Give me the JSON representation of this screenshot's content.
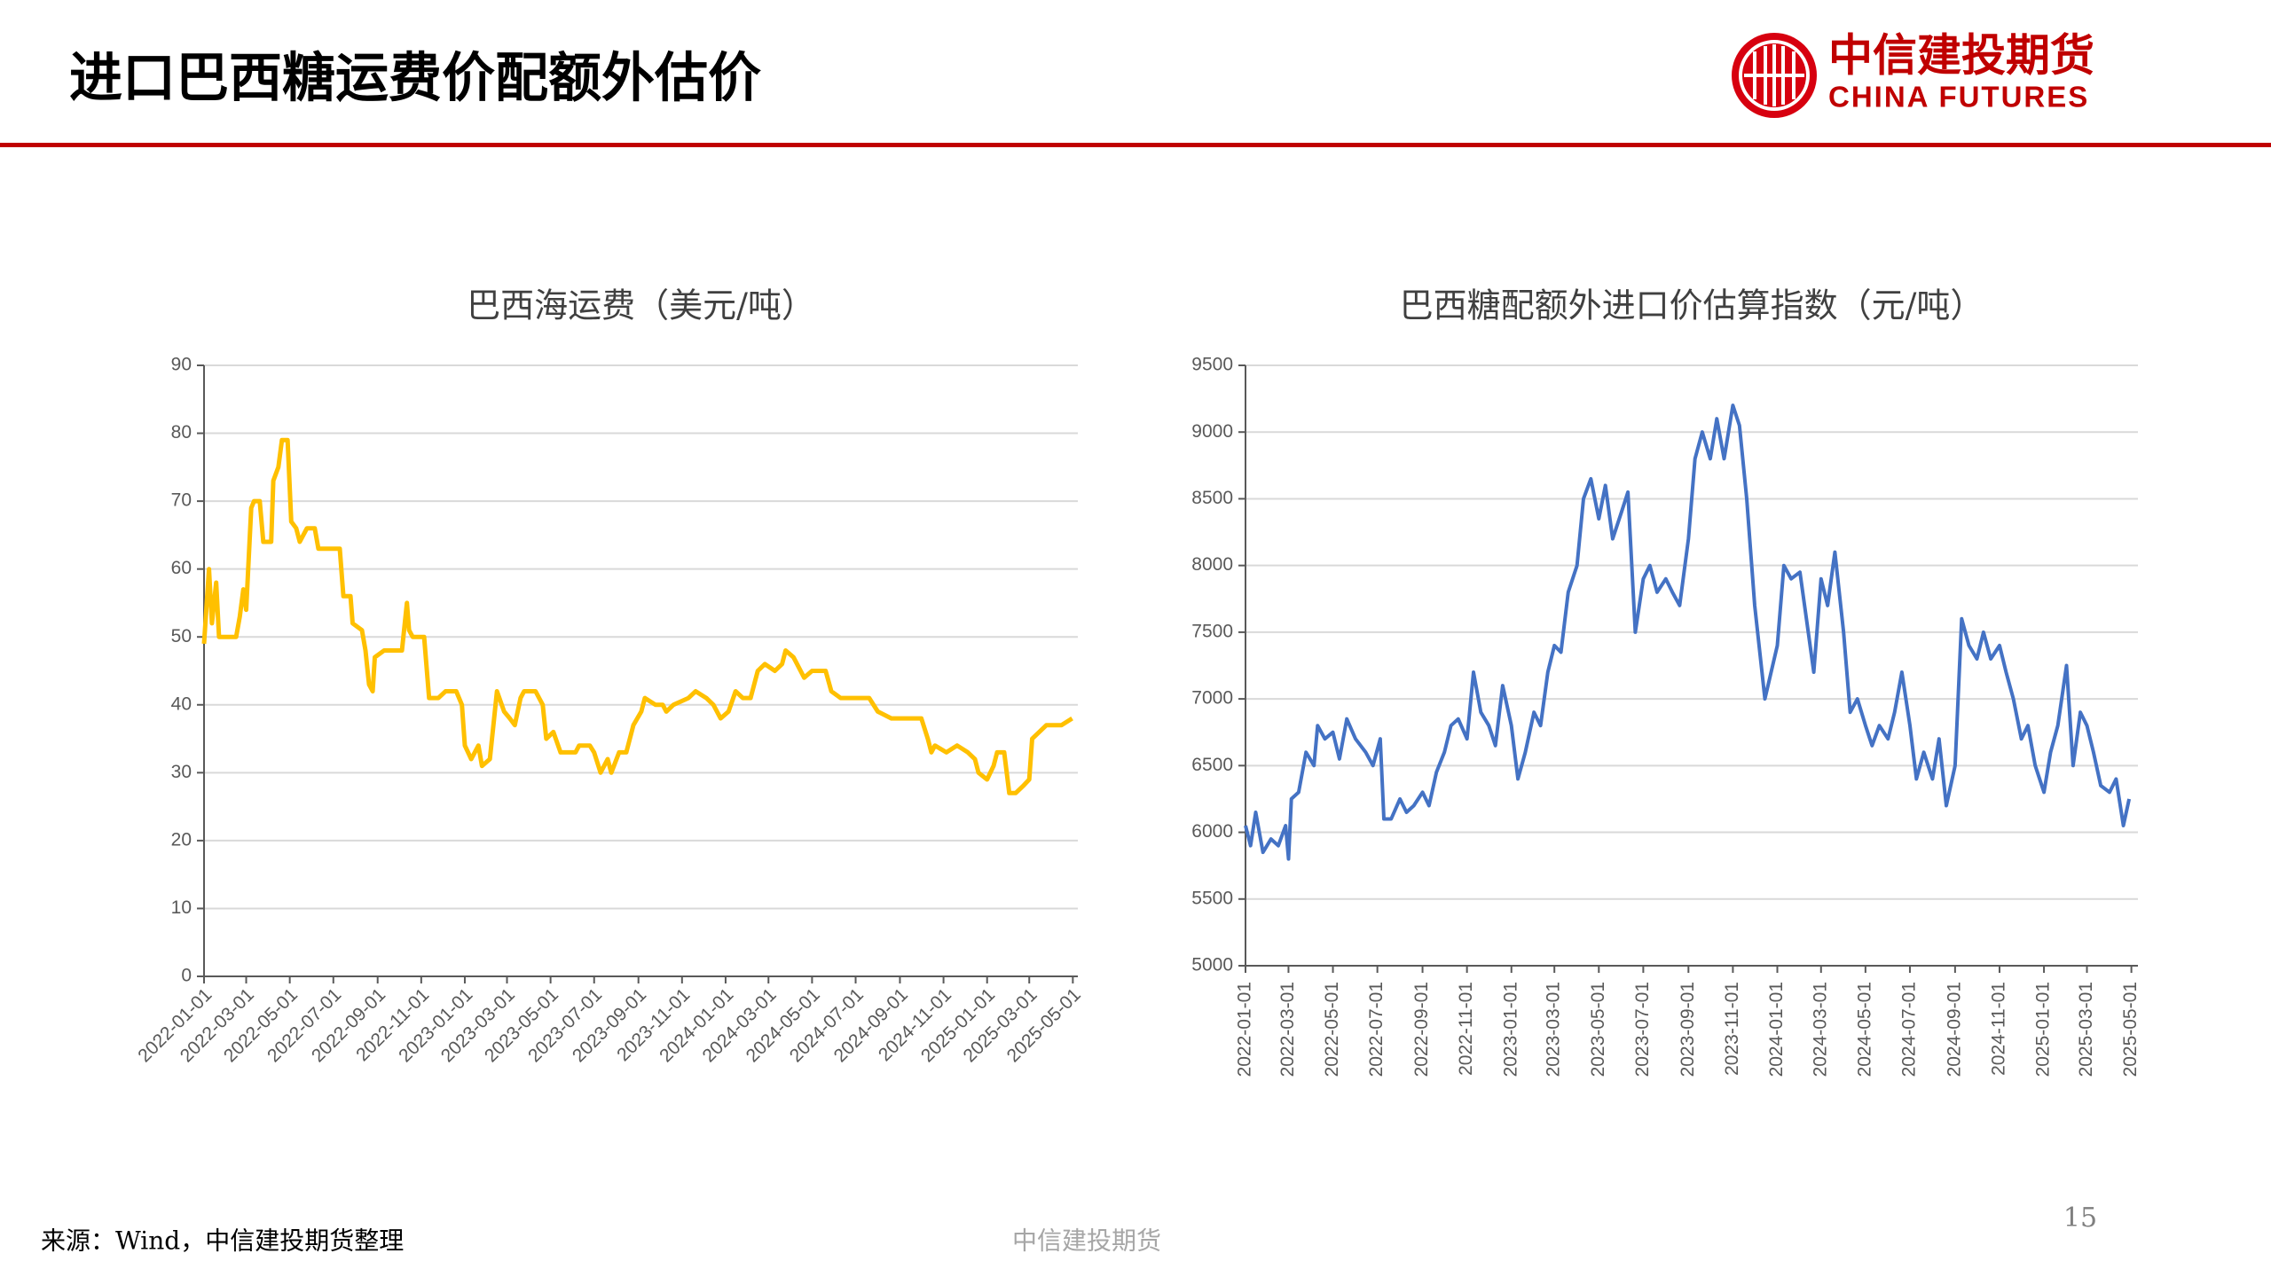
{
  "header": {
    "title": "进口巴西糖运费价配额外估价",
    "logo_cn": "中信建投期货",
    "logo_en": "CHINA FUTURES"
  },
  "footer": {
    "source": "来源：Wind，中信建投期货整理",
    "watermark": "中信建投期货",
    "page_number": "15"
  },
  "chart_data": [
    {
      "type": "line",
      "title": "巴西海运费（美元/吨）",
      "color": "#FFC000",
      "grid": true,
      "xlim": [
        "2022-01-01",
        "2025-05-08"
      ],
      "xticks": [
        "2022-01-01",
        "2022-03-01",
        "2022-05-01",
        "2022-07-01",
        "2022-09-01",
        "2022-11-01",
        "2023-01-01",
        "2023-03-01",
        "2023-05-01",
        "2023-07-01",
        "2023-09-01",
        "2023-11-01",
        "2024-01-01",
        "2024-03-01",
        "2024-05-01",
        "2024-07-01",
        "2024-09-01",
        "2024-11-01",
        "2025-01-01",
        "2025-03-01",
        "2025-05-01"
      ],
      "ylim": [
        0,
        90
      ],
      "yticks": [
        0,
        10,
        20,
        30,
        40,
        50,
        60,
        70,
        80,
        90
      ],
      "x": [
        "2022-01-01",
        "2022-01-08",
        "2022-01-12",
        "2022-01-18",
        "2022-01-22",
        "2022-02-15",
        "2022-02-20",
        "2022-02-25",
        "2022-03-01",
        "2022-03-08",
        "2022-03-12",
        "2022-03-20",
        "2022-03-25",
        "2022-04-05",
        "2022-04-08",
        "2022-04-15",
        "2022-04-20",
        "2022-04-28",
        "2022-05-03",
        "2022-05-10",
        "2022-05-15",
        "2022-05-25",
        "2022-06-05",
        "2022-06-10",
        "2022-07-10",
        "2022-07-15",
        "2022-07-25",
        "2022-07-28",
        "2022-08-10",
        "2022-08-15",
        "2022-08-20",
        "2022-08-25",
        "2022-08-28",
        "2022-09-10",
        "2022-10-05",
        "2022-10-12",
        "2022-10-15",
        "2022-10-20",
        "2022-11-05",
        "2022-11-12",
        "2022-11-25",
        "2022-12-05",
        "2022-12-20",
        "2022-12-28",
        "2023-01-01",
        "2023-01-10",
        "2023-01-15",
        "2023-01-20",
        "2023-01-25",
        "2023-02-05",
        "2023-02-15",
        "2023-02-25",
        "2023-03-05",
        "2023-03-12",
        "2023-03-20",
        "2023-03-25",
        "2023-04-10",
        "2023-04-20",
        "2023-04-25",
        "2023-05-05",
        "2023-05-15",
        "2023-06-05",
        "2023-06-10",
        "2023-06-25",
        "2023-07-01",
        "2023-07-10",
        "2023-07-20",
        "2023-07-25",
        "2023-08-05",
        "2023-08-15",
        "2023-08-25",
        "2023-09-05",
        "2023-09-10",
        "2023-09-25",
        "2023-10-05",
        "2023-10-10",
        "2023-10-20",
        "2023-11-10",
        "2023-11-20",
        "2023-12-05",
        "2023-12-15",
        "2023-12-25",
        "2024-01-05",
        "2024-01-15",
        "2024-01-25",
        "2024-02-05",
        "2024-02-15",
        "2024-02-25",
        "2024-03-10",
        "2024-03-20",
        "2024-03-25",
        "2024-04-05",
        "2024-04-10",
        "2024-04-20",
        "2024-05-01",
        "2024-05-20",
        "2024-05-28",
        "2024-06-10",
        "2024-06-25",
        "2024-07-10",
        "2024-07-20",
        "2024-08-01",
        "2024-08-20",
        "2024-09-05",
        "2024-09-15",
        "2024-10-01",
        "2024-10-10",
        "2024-10-15",
        "2024-10-20",
        "2024-11-05",
        "2024-11-20",
        "2024-12-05",
        "2024-12-15",
        "2024-12-20",
        "2025-01-01",
        "2025-01-10",
        "2025-01-15",
        "2025-01-25",
        "2025-02-01",
        "2025-02-10",
        "2025-02-20",
        "2025-03-01",
        "2025-03-05",
        "2025-03-15",
        "2025-03-25",
        "2025-04-15",
        "2025-04-30"
      ],
      "values": [
        49,
        60,
        52,
        58,
        50,
        50,
        53,
        57,
        54,
        69,
        70,
        70,
        64,
        64,
        73,
        75,
        79,
        79,
        67,
        66,
        64,
        66,
        66,
        63,
        63,
        56,
        56,
        52,
        51,
        48,
        43,
        42,
        47,
        48,
        48,
        55,
        51,
        50,
        50,
        41,
        41,
        42,
        42,
        40,
        34,
        32,
        33,
        34,
        31,
        32,
        42,
        39,
        38,
        37,
        41,
        42,
        42,
        40,
        35,
        36,
        33,
        33,
        34,
        34,
        33,
        30,
        32,
        30,
        33,
        33,
        37,
        39,
        41,
        40,
        40,
        39,
        40,
        41,
        42,
        41,
        40,
        38,
        39,
        42,
        41,
        41,
        45,
        46,
        45,
        46,
        48,
        47,
        46,
        44,
        45,
        45,
        42,
        41,
        41,
        41,
        41,
        39,
        38,
        38,
        38,
        38,
        35,
        33,
        34,
        33,
        34,
        33,
        32,
        30,
        29,
        31,
        33,
        33,
        27,
        27,
        28,
        29,
        35,
        36,
        37,
        37,
        38
      ]
    },
    {
      "type": "line",
      "title": "巴西糖配额外进口价估算指数（元/吨）",
      "color": "#4472C4",
      "grid": true,
      "xlim": [
        "2022-01-01",
        "2025-05-10"
      ],
      "xticks": [
        "2022-01-01",
        "2022-03-01",
        "2022-05-01",
        "2022-07-01",
        "2022-09-01",
        "2022-11-01",
        "2023-01-01",
        "2023-03-01",
        "2023-05-01",
        "2023-07-01",
        "2023-09-01",
        "2023-11-01",
        "2024-01-01",
        "2024-03-01",
        "2024-05-01",
        "2024-07-01",
        "2024-09-01",
        "2024-11-01",
        "2025-01-01",
        "2025-03-01",
        "2025-05-01"
      ],
      "ylim": [
        5000,
        9500
      ],
      "yticks": [
        5000,
        5500,
        6000,
        6500,
        7000,
        7500,
        8000,
        8500,
        9000,
        9500
      ],
      "x": [
        "2022-01-01",
        "2022-01-08",
        "2022-01-15",
        "2022-01-25",
        "2022-02-05",
        "2022-02-15",
        "2022-02-25",
        "2022-03-01",
        "2022-03-05",
        "2022-03-15",
        "2022-03-25",
        "2022-04-05",
        "2022-04-10",
        "2022-04-20",
        "2022-05-01",
        "2022-05-10",
        "2022-05-20",
        "2022-06-01",
        "2022-06-15",
        "2022-06-25",
        "2022-07-05",
        "2022-07-10",
        "2022-07-20",
        "2022-08-01",
        "2022-08-10",
        "2022-08-20",
        "2022-09-01",
        "2022-09-10",
        "2022-09-20",
        "2022-10-01",
        "2022-10-10",
        "2022-10-20",
        "2022-11-01",
        "2022-11-10",
        "2022-11-20",
        "2022-12-01",
        "2022-12-10",
        "2022-12-20",
        "2023-01-01",
        "2023-01-10",
        "2023-01-20",
        "2023-02-01",
        "2023-02-10",
        "2023-02-20",
        "2023-03-01",
        "2023-03-10",
        "2023-03-20",
        "2023-04-01",
        "2023-04-10",
        "2023-04-20",
        "2023-05-01",
        "2023-05-10",
        "2023-05-20",
        "2023-06-01",
        "2023-06-10",
        "2023-06-20",
        "2023-07-01",
        "2023-07-10",
        "2023-07-20",
        "2023-08-01",
        "2023-08-10",
        "2023-08-20",
        "2023-09-01",
        "2023-09-10",
        "2023-09-20",
        "2023-10-01",
        "2023-10-10",
        "2023-10-20",
        "2023-11-01",
        "2023-11-10",
        "2023-11-20",
        "2023-12-01",
        "2023-12-15",
        "2024-01-01",
        "2024-01-10",
        "2024-01-20",
        "2024-02-01",
        "2024-02-10",
        "2024-02-20",
        "2024-03-01",
        "2024-03-10",
        "2024-03-20",
        "2024-04-01",
        "2024-04-10",
        "2024-04-20",
        "2024-05-01",
        "2024-05-10",
        "2024-05-20",
        "2024-06-01",
        "2024-06-10",
        "2024-06-20",
        "2024-07-01",
        "2024-07-10",
        "2024-07-20",
        "2024-08-01",
        "2024-08-10",
        "2024-08-20",
        "2024-09-01",
        "2024-09-10",
        "2024-09-20",
        "2024-10-01",
        "2024-10-10",
        "2024-10-20",
        "2024-11-01",
        "2024-11-10",
        "2024-11-20",
        "2024-12-01",
        "2024-12-10",
        "2024-12-20",
        "2025-01-01",
        "2025-01-10",
        "2025-01-20",
        "2025-02-01",
        "2025-02-10",
        "2025-02-20",
        "2025-03-01",
        "2025-03-10",
        "2025-03-20",
        "2025-04-01",
        "2025-04-10",
        "2025-04-20",
        "2025-04-28"
      ],
      "values": [
        6050,
        5900,
        6150,
        5850,
        5950,
        5900,
        6050,
        5800,
        6250,
        6300,
        6600,
        6500,
        6800,
        6700,
        6750,
        6550,
        6850,
        6700,
        6600,
        6500,
        6700,
        6100,
        6100,
        6250,
        6150,
        6200,
        6300,
        6200,
        6450,
        6600,
        6800,
        6850,
        6700,
        7200,
        6900,
        6800,
        6650,
        7100,
        6800,
        6400,
        6600,
        6900,
        6800,
        7200,
        7400,
        7350,
        7800,
        8000,
        8500,
        8650,
        8350,
        8600,
        8200,
        8400,
        8550,
        7500,
        7900,
        8000,
        7800,
        7900,
        7800,
        7700,
        8200,
        8800,
        9000,
        8800,
        9100,
        8800,
        9200,
        9050,
        8500,
        7700,
        7000,
        7400,
        8000,
        7900,
        7950,
        7600,
        7200,
        7900,
        7700,
        8100,
        7500,
        6900,
        7000,
        6800,
        6650,
        6800,
        6700,
        6900,
        7200,
        6800,
        6400,
        6600,
        6400,
        6700,
        6200,
        6500,
        7600,
        7400,
        7300,
        7500,
        7300,
        7400,
        7200,
        7000,
        6700,
        6800,
        6500,
        6300,
        6600,
        6800,
        7250,
        6500,
        6900,
        6800,
        6600,
        6350,
        6300,
        6400,
        6050,
        6250
      ]
    }
  ]
}
